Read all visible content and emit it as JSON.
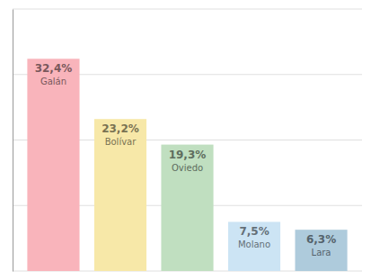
{
  "chart_data": {
    "type": "bar",
    "categories": [
      "Galán",
      "Bolívar",
      "Oviedo",
      "Molano",
      "Lara"
    ],
    "values": [
      32.4,
      23.2,
      19.3,
      7.5,
      6.3
    ],
    "value_labels": [
      "32,4%",
      "23,2%",
      "19,3%",
      "7,5%",
      "6,3%"
    ],
    "colors": [
      "#f9b4bb",
      "#f7e8a8",
      "#c0dfc0",
      "#cce4f4",
      "#aecbdc"
    ],
    "ylim": [
      0,
      40
    ],
    "yticks": [
      0,
      10,
      20,
      30,
      40
    ],
    "grid": true,
    "tick_labels": false,
    "data_labels": true
  }
}
